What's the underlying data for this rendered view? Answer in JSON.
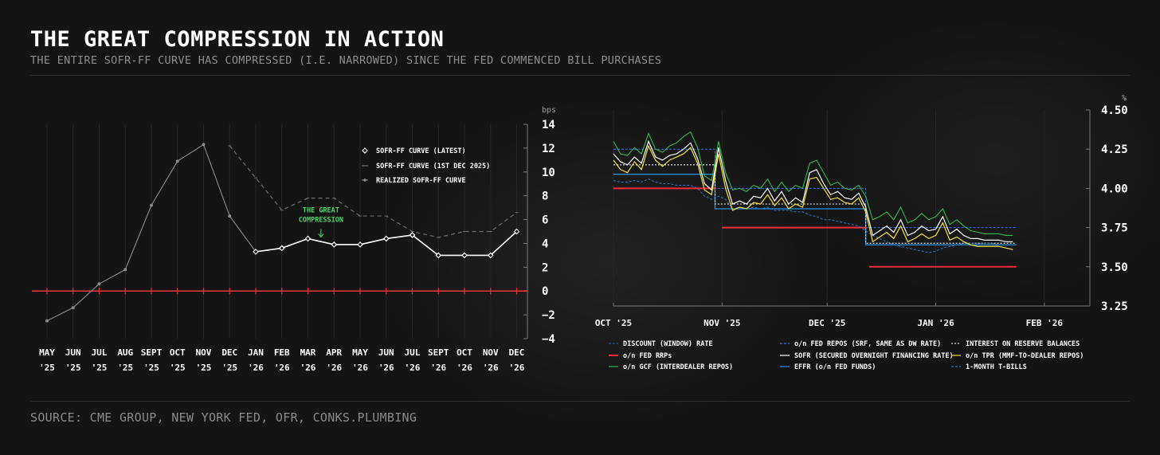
{
  "header": {
    "title": "THE GREAT COMPRESSION IN ACTION",
    "subtitle": "THE ENTIRE SOFR-FF CURVE HAS COMPRESSED (I.E. NARROWED) SINCE THE FED COMMENCED BILL PURCHASES"
  },
  "footer": {
    "source": "SOURCE: CME GROUP, NEW YORK FED, OFR, CONKS.PLUMBING"
  },
  "colors": {
    "background": "#151515",
    "latest": "#ffffff",
    "dec": "#6a6a6a",
    "realized": "#8a8a8a",
    "zero_line": "#e8323c",
    "annotation": "#4cd36a",
    "rrp": "#ff2b3a",
    "sofr": "#ffffff",
    "tpr": "#f2e23a",
    "gcf": "#35b84a",
    "effr": "#2a8fe0",
    "fedrepo": "#3a6fd8",
    "iorb": "#d8d8d8",
    "tbill": "#2f78c8"
  },
  "chart_data": [
    {
      "type": "line",
      "title": "",
      "unit_label": "bps",
      "ylim": [
        -4,
        14
      ],
      "yticks": [
        "14",
        "12",
        "10",
        "8",
        "6",
        "4",
        "2",
        "0",
        "−2",
        "−4"
      ],
      "ytick_values": [
        14,
        12,
        10,
        8,
        6,
        4,
        2,
        0,
        -2,
        -4
      ],
      "categories": [
        {
          "m": "MAY",
          "y": "'25"
        },
        {
          "m": "JUN",
          "y": "'25"
        },
        {
          "m": "JUL",
          "y": "'25"
        },
        {
          "m": "AUG",
          "y": "'25"
        },
        {
          "m": "SEPT",
          "y": "'25"
        },
        {
          "m": "OCT",
          "y": "'25"
        },
        {
          "m": "NOV",
          "y": "'25"
        },
        {
          "m": "DEC",
          "y": "'25"
        },
        {
          "m": "JAN",
          "y": "'26"
        },
        {
          "m": "FEB",
          "y": "'26"
        },
        {
          "m": "MAR",
          "y": "'26"
        },
        {
          "m": "APR",
          "y": "'26"
        },
        {
          "m": "MAY",
          "y": "'26"
        },
        {
          "m": "JUN",
          "y": "'26"
        },
        {
          "m": "JUL",
          "y": "'26"
        },
        {
          "m": "SEPT",
          "y": "'26"
        },
        {
          "m": "OCT",
          "y": "'26"
        },
        {
          "m": "NOV",
          "y": "'26"
        },
        {
          "m": "DEC",
          "y": "'26"
        }
      ],
      "series": [
        {
          "name": "SOFR-FF CURVE (LATEST)",
          "style": "latest",
          "points": [
            [
              8,
              3.3
            ],
            [
              9,
              3.6
            ],
            [
              10,
              4.4
            ],
            [
              11,
              3.9
            ],
            [
              12,
              3.9
            ],
            [
              13,
              4.4
            ],
            [
              14,
              4.7
            ],
            [
              15,
              3.0
            ],
            [
              16,
              3.0
            ],
            [
              17,
              3.0
            ],
            [
              18,
              5.0
            ]
          ]
        },
        {
          "name": "SOFR-FF CURVE (1ST DEC 2025)",
          "style": "dec",
          "points": [
            [
              7,
              12.2
            ],
            [
              8,
              9.5
            ],
            [
              9,
              6.8
            ],
            [
              10,
              7.8
            ],
            [
              11,
              7.8
            ],
            [
              12,
              6.3
            ],
            [
              13,
              6.3
            ],
            [
              14,
              5.0
            ],
            [
              15,
              4.5
            ],
            [
              16,
              5.0
            ],
            [
              17,
              5.0
            ],
            [
              18,
              6.6
            ]
          ]
        },
        {
          "name": "REALIZED SOFR-FF CURVE",
          "style": "realized",
          "points": [
            [
              0,
              -2.5
            ],
            [
              1,
              -1.4
            ],
            [
              2,
              0.6
            ],
            [
              3,
              1.8
            ],
            [
              4,
              7.2
            ],
            [
              5,
              10.9
            ],
            [
              6,
              12.3
            ],
            [
              7,
              6.3
            ],
            [
              8,
              3.3
            ]
          ]
        }
      ],
      "reference_line": {
        "y": 0
      },
      "annotation": {
        "text": [
          "THE GREAT",
          "COMPRESSION"
        ],
        "x": 10.5,
        "y": 6.0
      }
    },
    {
      "type": "line",
      "title": "",
      "unit_label": "%",
      "ylim": [
        3.25,
        4.5
      ],
      "yticks": [
        "4.50",
        "4.25",
        "4.00",
        "3.75",
        "3.50",
        "3.25"
      ],
      "ytick_values": [
        4.5,
        4.25,
        4.0,
        3.75,
        3.5,
        3.25
      ],
      "xticks": [
        {
          "label": "OCT '25",
          "day": 0
        },
        {
          "label": "NOV '25",
          "day": 31
        },
        {
          "label": "DEC '25",
          "day": 61
        },
        {
          "label": "JAN '26",
          "day": 92
        },
        {
          "label": "FEB '26",
          "day": 123
        }
      ],
      "legend": [
        {
          "key": "discount",
          "label": "DISCOUNT (WINDOW) RATE",
          "dash": "3,2"
        },
        {
          "key": "fedrepo",
          "label": "o/n FED REPOS (SRF, SAME AS DW RATE)",
          "dash": "3,2"
        },
        {
          "key": "iorb",
          "label": "INTEREST ON RESERVE BALANCES",
          "dash": "2,2"
        },
        {
          "key": "rrp",
          "label": "o/n FED RRPs",
          "dash": ""
        },
        {
          "key": "sofr",
          "label": "SOFR (SECURED OVERNIGHT FINANCING RATE)",
          "dash": ""
        },
        {
          "key": "tpr",
          "label": "o/n TPR (MMF-TO-DEALER REPOS)",
          "dash": ""
        },
        {
          "key": "gcf",
          "label": "o/n GCF (INTERDEALER REPOS)",
          "dash": ""
        },
        {
          "key": "effr",
          "label": "EFFR (o/n FED FUNDS)",
          "dash": ""
        },
        {
          "key": "tbill",
          "label": "1-MONTH T-BILLS",
          "dash": "3,2"
        }
      ],
      "step_series": {
        "fedrepo": [
          [
            0,
            4.25
          ],
          [
            29,
            4.25
          ],
          [
            29,
            4.0
          ],
          [
            72,
            4.0
          ],
          [
            72,
            3.75
          ],
          [
            115,
            3.75
          ]
        ],
        "iorb": [
          [
            0,
            4.15
          ],
          [
            29,
            4.15
          ],
          [
            29,
            3.9
          ],
          [
            72,
            3.9
          ],
          [
            72,
            3.65
          ],
          [
            115,
            3.65
          ]
        ],
        "rrp": [
          [
            0,
            4.0
          ],
          [
            29,
            4.0
          ]
        ],
        "rrp2": [
          [
            31,
            3.75
          ],
          [
            72,
            3.75
          ]
        ],
        "rrp3": [
          [
            73,
            3.5
          ],
          [
            115,
            3.5
          ]
        ],
        "effr": [
          [
            0,
            4.09
          ],
          [
            29,
            4.09
          ],
          [
            29,
            3.87
          ],
          [
            72,
            3.87
          ],
          [
            72,
            3.64
          ],
          [
            115,
            3.64
          ]
        ]
      },
      "daily_series": {
        "days": [
          0,
          2,
          4,
          6,
          8,
          10,
          12,
          14,
          16,
          18,
          20,
          22,
          24,
          26,
          28,
          30,
          32,
          34,
          36,
          38,
          40,
          42,
          44,
          46,
          48,
          50,
          52,
          54,
          56,
          58,
          60,
          62,
          64,
          66,
          68,
          70,
          72,
          74,
          76,
          78,
          80,
          82,
          84,
          86,
          88,
          90,
          92,
          94,
          96,
          98,
          100,
          102,
          104,
          106,
          108,
          110,
          112,
          114
        ],
        "sofr": [
          4.22,
          4.17,
          4.15,
          4.2,
          4.16,
          4.3,
          4.2,
          4.18,
          4.21,
          4.22,
          4.25,
          4.29,
          4.19,
          4.03,
          3.99,
          4.26,
          4.05,
          3.9,
          3.92,
          3.9,
          3.95,
          3.94,
          4.0,
          3.92,
          3.98,
          3.9,
          3.94,
          3.91,
          4.1,
          4.12,
          4.03,
          3.96,
          3.98,
          3.94,
          3.93,
          3.97,
          3.88,
          3.7,
          3.73,
          3.76,
          3.72,
          3.8,
          3.7,
          3.72,
          3.76,
          3.73,
          3.74,
          3.82,
          3.71,
          3.74,
          3.7,
          3.68,
          3.68,
          3.67,
          3.67,
          3.67,
          3.66,
          3.66
        ],
        "tpr": [
          4.18,
          4.12,
          4.1,
          4.17,
          4.12,
          4.27,
          4.18,
          4.14,
          4.18,
          4.2,
          4.22,
          4.26,
          4.16,
          3.99,
          3.96,
          4.22,
          4.0,
          3.86,
          3.88,
          3.87,
          3.91,
          3.9,
          3.96,
          3.89,
          3.94,
          3.87,
          3.9,
          3.88,
          4.06,
          4.07,
          4.0,
          3.93,
          3.94,
          3.91,
          3.9,
          3.94,
          3.85,
          3.66,
          3.69,
          3.72,
          3.68,
          3.76,
          3.66,
          3.68,
          3.71,
          3.68,
          3.7,
          3.78,
          3.67,
          3.69,
          3.66,
          3.64,
          3.63,
          3.63,
          3.63,
          3.63,
          3.62,
          3.61
        ],
        "gcf": [
          4.3,
          4.22,
          4.21,
          4.26,
          4.22,
          4.35,
          4.25,
          4.23,
          4.27,
          4.29,
          4.33,
          4.36,
          4.26,
          4.08,
          4.05,
          4.3,
          4.1,
          3.99,
          4.0,
          3.98,
          4.02,
          4.0,
          4.06,
          3.98,
          4.04,
          3.98,
          4.02,
          4.0,
          4.16,
          4.18,
          4.1,
          4.02,
          4.04,
          4.0,
          3.99,
          4.02,
          3.95,
          3.8,
          3.82,
          3.85,
          3.8,
          3.88,
          3.78,
          3.8,
          3.84,
          3.8,
          3.82,
          3.87,
          3.77,
          3.8,
          3.76,
          3.73,
          3.72,
          3.71,
          3.71,
          3.71,
          3.7,
          3.7
        ],
        "tbill": [
          4.05,
          4.04,
          4.04,
          4.05,
          4.04,
          4.06,
          4.04,
          4.03,
          4.03,
          4.02,
          4.02,
          4.02,
          4.0,
          3.95,
          3.93,
          3.95,
          3.93,
          3.87,
          3.88,
          3.87,
          3.88,
          3.87,
          3.88,
          3.86,
          3.86,
          3.86,
          3.85,
          3.85,
          3.83,
          3.82,
          3.8,
          3.8,
          3.79,
          3.78,
          3.77,
          3.76,
          3.73,
          3.7,
          3.68,
          3.66,
          3.64,
          3.63,
          3.62,
          3.61,
          3.6,
          3.59,
          3.6,
          3.62,
          3.63,
          3.64,
          3.65,
          3.65,
          3.65,
          3.65,
          3.65,
          3.64,
          3.64,
          3.64
        ]
      }
    }
  ]
}
